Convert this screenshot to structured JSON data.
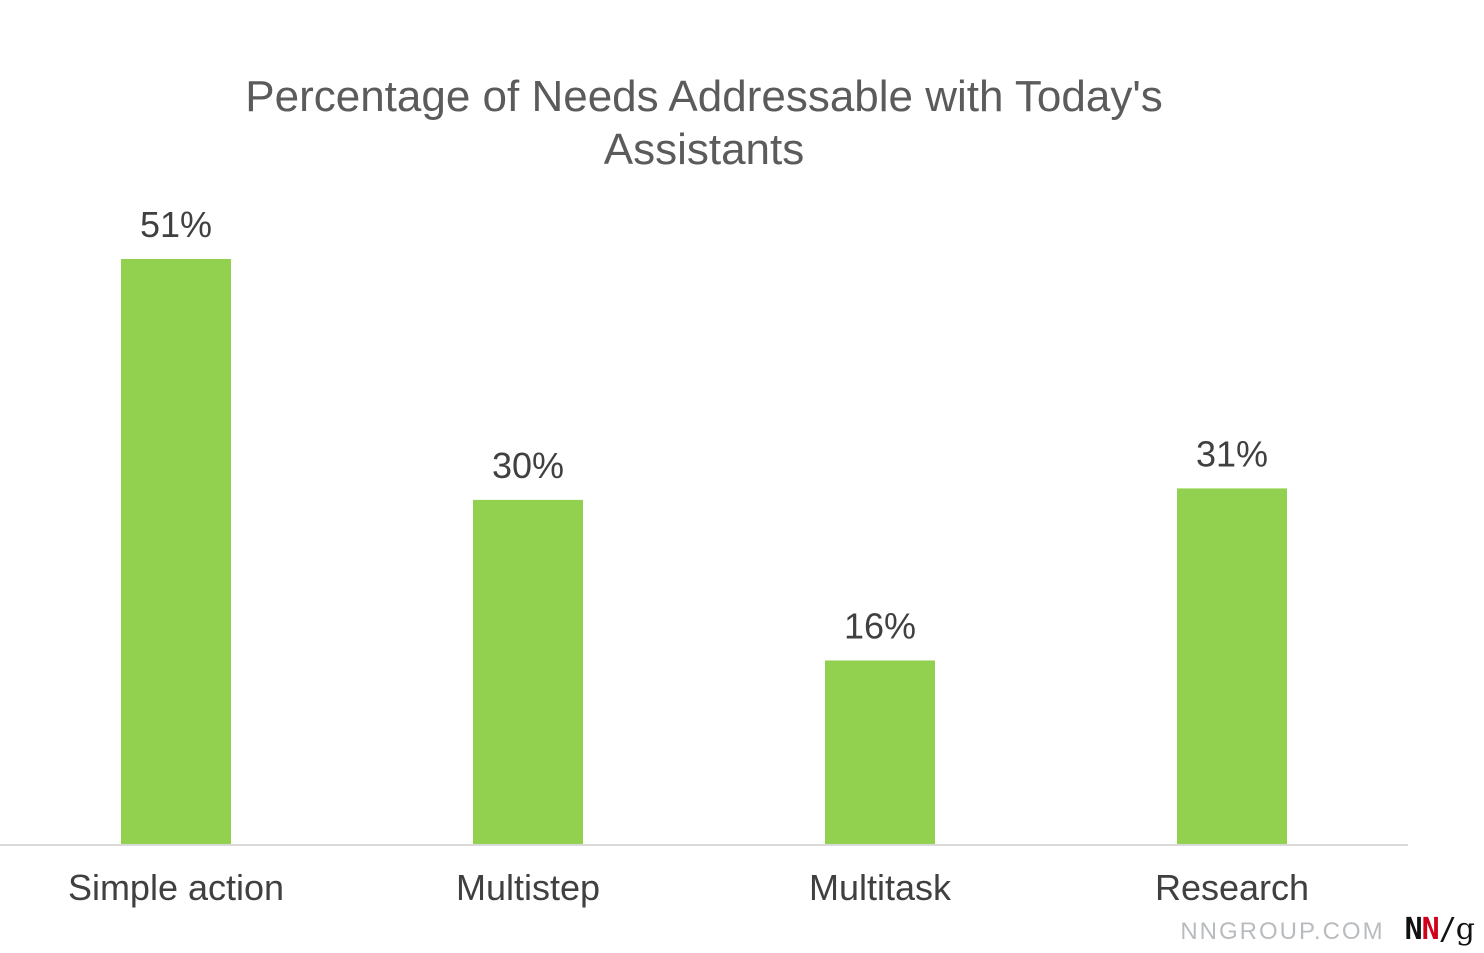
{
  "chart_data": {
    "type": "bar",
    "title_lines": [
      "Percentage of Needs Addressable with Today's",
      "Assistants"
    ],
    "categories": [
      "Simple action",
      "Multistep",
      "Multitask",
      "Research"
    ],
    "values": [
      51,
      30,
      16,
      31
    ],
    "data_labels": [
      "51%",
      "30%",
      "16%",
      "31%"
    ],
    "ylim": [
      0,
      51
    ],
    "grid": false,
    "legend": "none",
    "colors": {
      "bar": "#92d050",
      "axis": "#d9d9d9",
      "label_text": "#404040",
      "title_text": "#5b5b5b"
    }
  },
  "watermark": {
    "site": "NNGROUP.COM",
    "logo_n1": "N",
    "logo_n2": "N",
    "logo_slash": "/",
    "logo_g": "g"
  }
}
